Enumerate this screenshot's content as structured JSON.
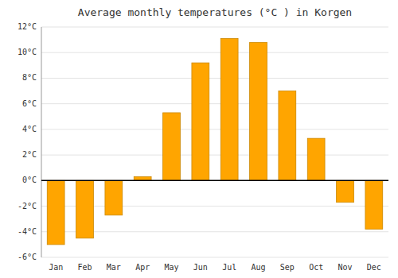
{
  "chart_data": {
    "type": "bar",
    "title": "Average monthly temperatures (°C ) in Korgen",
    "categories": [
      "Jan",
      "Feb",
      "Mar",
      "Apr",
      "May",
      "Jun",
      "Jul",
      "Aug",
      "Sep",
      "Oct",
      "Nov",
      "Dec"
    ],
    "values": [
      -5.0,
      -4.5,
      -2.7,
      0.3,
      5.3,
      9.2,
      11.1,
      10.8,
      7.0,
      3.3,
      -1.7,
      -3.8
    ],
    "color": "#FFA500",
    "ylim": [
      -6,
      12
    ],
    "yticks": [
      {
        "value": -6,
        "label": "-6°C"
      },
      {
        "value": -4,
        "label": "-4°C"
      },
      {
        "value": -2,
        "label": "-2°C"
      },
      {
        "value": 0,
        "label": "0°C"
      },
      {
        "value": 2,
        "label": "2°C"
      },
      {
        "value": 4,
        "label": "4°C"
      },
      {
        "value": 6,
        "label": "6°C"
      },
      {
        "value": 8,
        "label": "8°C"
      },
      {
        "value": 10,
        "label": "10°C"
      },
      {
        "value": 12,
        "label": "12°C"
      }
    ],
    "grid": true
  }
}
